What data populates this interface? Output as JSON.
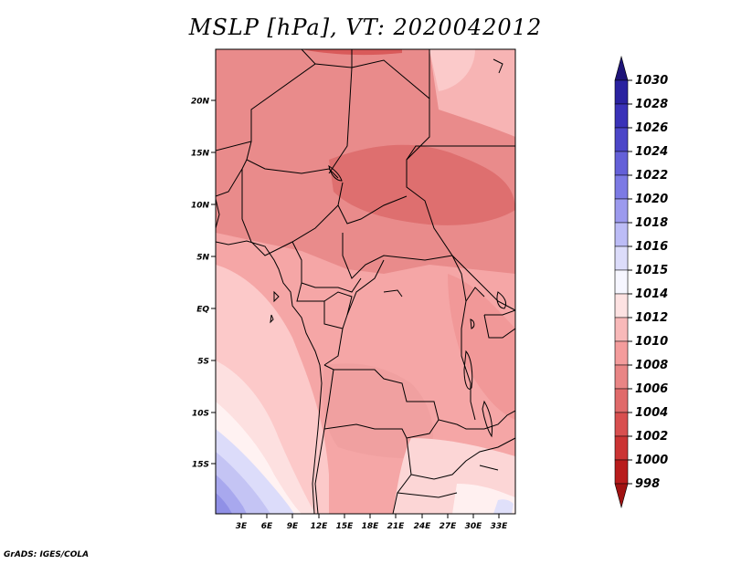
{
  "title": "MSLP [hPa], VT: 2020042012",
  "credit": "GrADS: IGES/COLA",
  "map": {
    "lat_labels": [
      "20N",
      "15N",
      "10N",
      "5N",
      "EQ",
      "5S",
      "10S",
      "15S"
    ],
    "lon_labels": [
      "3E",
      "6E",
      "9E",
      "12E",
      "15E",
      "18E",
      "21E",
      "24E",
      "27E",
      "30E",
      "33E"
    ]
  },
  "colorbar": {
    "levels": [
      "1030",
      "1028",
      "1026",
      "1024",
      "1022",
      "1020",
      "1018",
      "1016",
      "1015",
      "1014",
      "1012",
      "1010",
      "1008",
      "1006",
      "1004",
      "1002",
      "1000",
      "998"
    ],
    "colors": [
      "#1e1478",
      "#2a22a0",
      "#3a32b8",
      "#4c46c8",
      "#6460d8",
      "#7c7ae4",
      "#9c9aee",
      "#bcbcf6",
      "#dcdcfa",
      "#f6f6ff",
      "#fde2e2",
      "#f8b9b9",
      "#f49c9c",
      "#e98585",
      "#e06a6a",
      "#d84f4f",
      "#cb3434",
      "#b81c1c",
      "#a01212"
    ]
  }
}
